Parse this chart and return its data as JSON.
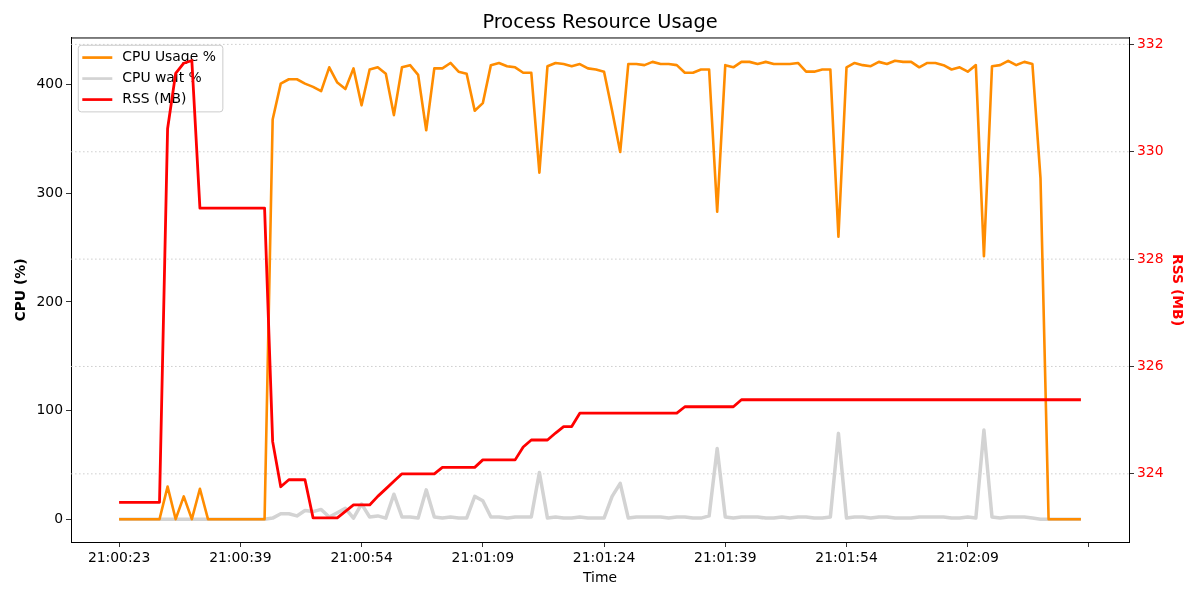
{
  "chart_data": {
    "type": "line",
    "title": "Process Resource Usage",
    "xlabel": "Time",
    "ylabel": "CPU (%)",
    "y2label": "RSS (MB)",
    "categories": [
      "21:00:23",
      null,
      null,
      null,
      null,
      null,
      null,
      null,
      null,
      null,
      null,
      null,
      null,
      null,
      null,
      "21:00:39",
      null,
      null,
      null,
      null,
      null,
      null,
      null,
      null,
      null,
      null,
      null,
      null,
      null,
      null,
      "21:00:54",
      null,
      null,
      null,
      null,
      null,
      null,
      null,
      null,
      null,
      null,
      null,
      null,
      null,
      null,
      "21:01:09",
      null,
      null,
      null,
      null,
      null,
      null,
      null,
      null,
      null,
      null,
      null,
      null,
      null,
      null,
      "21:01:24",
      null,
      null,
      null,
      null,
      null,
      null,
      null,
      null,
      null,
      null,
      null,
      null,
      null,
      null,
      "21:01:39",
      null,
      null,
      null,
      null,
      null,
      null,
      null,
      null,
      null,
      null,
      null,
      null,
      null,
      null,
      "21:01:54",
      null,
      null,
      null,
      null,
      null,
      null,
      null,
      null,
      null,
      null,
      null,
      null,
      null,
      null,
      "21:02:09",
      null,
      null,
      null,
      null,
      null,
      null,
      null,
      null,
      null,
      null,
      null,
      null,
      null,
      null
    ],
    "ylim": [
      -21,
      443
    ],
    "yticks": [
      0,
      100,
      200,
      300,
      400
    ],
    "y2lim": [
      322.73,
      332.12
    ],
    "y2ticks": [
      324,
      326,
      328,
      330,
      332
    ],
    "grid": "y2",
    "legend": "top left",
    "series": [
      {
        "name": "CPU Usage %",
        "color": "#ff8c00",
        "values": [
          0,
          0,
          0,
          0,
          0,
          0,
          30,
          0,
          21,
          0,
          28,
          0,
          0,
          0,
          0,
          0,
          0,
          0,
          0,
          368,
          401,
          405,
          405,
          401,
          398,
          394,
          416,
          402,
          396,
          415,
          381,
          414,
          416,
          410,
          372,
          416,
          418,
          409,
          358,
          415,
          415,
          420,
          412,
          410,
          376,
          383,
          418,
          420,
          417,
          416,
          411,
          411,
          319,
          417,
          420,
          419,
          417,
          419,
          415,
          414,
          412,
          376,
          338,
          419,
          419,
          418,
          421,
          419,
          419,
          418,
          411,
          411,
          414,
          414,
          283,
          418,
          416,
          421,
          421,
          419,
          421,
          419,
          419,
          419,
          420,
          412,
          412,
          414,
          414,
          260,
          416,
          420,
          418,
          417,
          421,
          419,
          422,
          421,
          421,
          416,
          420,
          420,
          418,
          414,
          416,
          412,
          418,
          242,
          417,
          418,
          422,
          418,
          421,
          419,
          314,
          0,
          0,
          0,
          0,
          0
        ]
      },
      {
        "name": "CPU wait %",
        "color": "#d3d3d3",
        "values": [
          0,
          0,
          0,
          0,
          0,
          0,
          0,
          0,
          0,
          0,
          0,
          0,
          0,
          0,
          0,
          0,
          0,
          0,
          0,
          1,
          5,
          5,
          3,
          8,
          7,
          9,
          2,
          6,
          10,
          1,
          14,
          2,
          3,
          1,
          23,
          2,
          2,
          1,
          27,
          2,
          1,
          2,
          1,
          1,
          21,
          17,
          2,
          2,
          1,
          2,
          2,
          2,
          43,
          1,
          2,
          1,
          1,
          2,
          1,
          1,
          1,
          21,
          33,
          1,
          2,
          2,
          2,
          2,
          1,
          2,
          2,
          1,
          1,
          3,
          65,
          2,
          1,
          2,
          2,
          2,
          1,
          1,
          2,
          1,
          2,
          2,
          1,
          1,
          2,
          79,
          1,
          2,
          2,
          1,
          2,
          2,
          1,
          1,
          1,
          2,
          2,
          2,
          2,
          1,
          1,
          2,
          1,
          82,
          2,
          1,
          2,
          2,
          2,
          1,
          0,
          0,
          0,
          0,
          0,
          0
        ]
      },
      {
        "name": "RSS (MB)",
        "color": "#ff0000",
        "axis": "y2",
        "values": [
          323.47,
          323.47,
          323.47,
          323.47,
          323.47,
          323.47,
          330.43,
          331.46,
          331.65,
          331.7,
          328.95,
          328.95,
          328.95,
          328.95,
          328.95,
          328.95,
          328.95,
          328.95,
          328.95,
          324.6,
          323.76,
          323.89,
          323.89,
          323.89,
          323.18,
          323.18,
          323.18,
          323.18,
          323.3,
          323.42,
          323.42,
          323.42,
          323.58,
          323.72,
          323.86,
          324.0,
          324.0,
          324.0,
          324.0,
          324.0,
          324.12,
          324.12,
          324.12,
          324.12,
          324.12,
          324.26,
          324.26,
          324.26,
          324.26,
          324.26,
          324.5,
          324.63,
          324.63,
          324.63,
          324.76,
          324.88,
          324.88,
          325.13,
          325.13,
          325.13,
          325.13,
          325.13,
          325.13,
          325.13,
          325.13,
          325.13,
          325.13,
          325.13,
          325.13,
          325.13,
          325.25,
          325.25,
          325.25,
          325.25,
          325.25,
          325.25,
          325.25,
          325.38,
          325.38,
          325.38,
          325.38,
          325.38,
          325.38,
          325.38,
          325.38,
          325.38,
          325.38,
          325.38,
          325.38,
          325.38,
          325.38,
          325.38,
          325.38,
          325.38,
          325.38,
          325.38,
          325.38,
          325.38,
          325.38,
          325.38,
          325.38,
          325.38,
          325.38,
          325.38,
          325.38,
          325.38,
          325.38,
          325.38,
          325.38,
          325.38,
          325.38,
          325.38,
          325.38,
          325.38,
          325.38,
          325.38,
          325.38,
          325.38,
          325.38,
          325.38
        ]
      }
    ]
  }
}
